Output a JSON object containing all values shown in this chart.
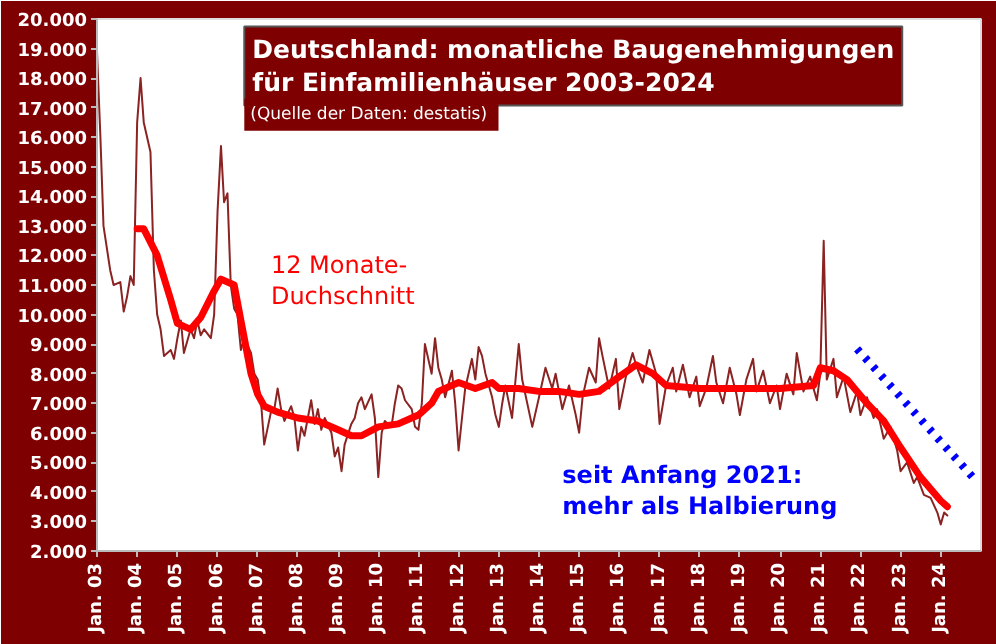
{
  "chart_data": {
    "type": "line",
    "title": "Deutschland: monatliche Baugenehmigungen\nfür Einfamilienhäuser 2003-2024",
    "subtitle": "(Quelle der Daten:  destatis)",
    "annotations": [
      "12 Monate-\nDuchschnitt",
      "seit Anfang 2021:\nmehr als Halbierung"
    ],
    "xlim": [
      "2003-01",
      "2025-01"
    ],
    "ylim": [
      2000,
      20000
    ],
    "xticks": [
      {
        "value": "2003-01",
        "label": "Jan. 03"
      },
      {
        "value": "2004-01",
        "label": "Jan. 04"
      },
      {
        "value": "2005-01",
        "label": "Jan. 05"
      },
      {
        "value": "2006-01",
        "label": "Jan. 06"
      },
      {
        "value": "2007-01",
        "label": "Jan. 07"
      },
      {
        "value": "2008-01",
        "label": "Jan. 08"
      },
      {
        "value": "2009-01",
        "label": "Jan. 09"
      },
      {
        "value": "2010-01",
        "label": "Jan. 10"
      },
      {
        "value": "2011-01",
        "label": "Jan. 11"
      },
      {
        "value": "2012-01",
        "label": "Jan. 12"
      },
      {
        "value": "2013-01",
        "label": "Jan. 13"
      },
      {
        "value": "2014-01",
        "label": "Jan. 14"
      },
      {
        "value": "2015-01",
        "label": "Jan. 15"
      },
      {
        "value": "2016-01",
        "label": "Jan. 16"
      },
      {
        "value": "2017-01",
        "label": "Jan. 17"
      },
      {
        "value": "2018-01",
        "label": "Jan. 18"
      },
      {
        "value": "2019-01",
        "label": "Jan. 19"
      },
      {
        "value": "2020-01",
        "label": "Jan. 20"
      },
      {
        "value": "2021-01",
        "label": "Jan. 21"
      },
      {
        "value": "2022-01",
        "label": "Jan. 22"
      },
      {
        "value": "2023-01",
        "label": "Jan. 23"
      },
      {
        "value": "2024-01",
        "label": "Jan. 24"
      }
    ],
    "yticks": [
      {
        "value": 2000,
        "label": "2.000"
      },
      {
        "value": 3000,
        "label": "3.000"
      },
      {
        "value": 4000,
        "label": "4.000"
      },
      {
        "value": 5000,
        "label": "5.000"
      },
      {
        "value": 6000,
        "label": "6.000"
      },
      {
        "value": 7000,
        "label": "7.000"
      },
      {
        "value": 8000,
        "label": "8.000"
      },
      {
        "value": 9000,
        "label": "9.000"
      },
      {
        "value": 10000,
        "label": "10.000"
      },
      {
        "value": 11000,
        "label": "11.000"
      },
      {
        "value": 12000,
        "label": "12.000"
      },
      {
        "value": 13000,
        "label": "13.000"
      },
      {
        "value": 14000,
        "label": "14.000"
      },
      {
        "value": 15000,
        "label": "15.000"
      },
      {
        "value": 16000,
        "label": "16.000"
      },
      {
        "value": 17000,
        "label": "17.000"
      },
      {
        "value": 18000,
        "label": "18.000"
      },
      {
        "value": 19000,
        "label": "19.000"
      },
      {
        "value": 20000,
        "label": "20.000"
      }
    ],
    "grid": false,
    "marker": "none",
    "series": [
      {
        "color": "#8b2323",
        "line_style": "solid",
        "x": [
          "2003-01",
          "2003-02",
          "2003-03",
          "2003-05",
          "2003-06",
          "2003-08",
          "2003-09",
          "2003-10",
          "2003-11",
          "2003-12",
          "2004-01",
          "2004-02",
          "2004-03",
          "2004-05",
          "2004-06",
          "2004-07",
          "2004-08",
          "2004-09",
          "2004-11",
          "2004-12",
          "2005-01",
          "2005-02",
          "2005-03",
          "2005-05",
          "2005-06",
          "2005-07",
          "2005-08",
          "2005-09",
          "2005-11",
          "2005-12",
          "2006-01",
          "2006-02",
          "2006-03",
          "2006-04",
          "2006-05",
          "2006-06",
          "2006-07",
          "2006-08",
          "2006-09",
          "2006-11",
          "2006-12",
          "2007-01",
          "2007-02",
          "2007-03",
          "2007-05",
          "2007-06",
          "2007-07",
          "2007-08",
          "2007-09",
          "2007-11",
          "2007-12",
          "2008-01",
          "2008-02",
          "2008-03",
          "2008-05",
          "2008-06",
          "2008-07",
          "2008-08",
          "2008-09",
          "2008-11",
          "2008-12",
          "2009-01",
          "2009-02",
          "2009-03",
          "2009-05",
          "2009-06",
          "2009-07",
          "2009-08",
          "2009-09",
          "2009-11",
          "2009-12",
          "2010-01",
          "2010-02",
          "2010-03",
          "2010-05",
          "2010-06",
          "2010-07",
          "2010-08",
          "2010-09",
          "2010-11",
          "2010-12",
          "2011-01",
          "2011-02",
          "2011-03",
          "2011-05",
          "2011-06",
          "2011-07",
          "2011-08",
          "2011-09",
          "2011-11",
          "2011-12",
          "2012-01",
          "2012-02",
          "2012-03",
          "2012-05",
          "2012-06",
          "2012-07",
          "2012-08",
          "2012-09",
          "2012-11",
          "2012-12",
          "2013-01",
          "2013-02",
          "2013-03",
          "2013-05",
          "2013-07",
          "2013-08",
          "2013-11",
          "2014-01",
          "2014-03",
          "2014-05",
          "2014-06",
          "2014-08",
          "2014-10",
          "2014-12",
          "2015-01",
          "2015-02",
          "2015-04",
          "2015-06",
          "2015-07",
          "2015-08",
          "2015-10",
          "2015-12",
          "2016-01",
          "2016-03",
          "2016-05",
          "2016-06",
          "2016-08",
          "2016-10",
          "2016-12",
          "2017-01",
          "2017-03",
          "2017-05",
          "2017-06",
          "2017-08",
          "2017-10",
          "2017-12",
          "2018-01",
          "2018-03",
          "2018-05",
          "2018-06",
          "2018-08",
          "2018-10",
          "2018-12",
          "2019-01",
          "2019-03",
          "2019-05",
          "2019-06",
          "2019-08",
          "2019-10",
          "2019-12",
          "2020-01",
          "2020-03",
          "2020-05",
          "2020-06",
          "2020-08",
          "2020-10",
          "2020-12",
          "2021-01",
          "2021-02",
          "2021-03",
          "2021-05",
          "2021-06",
          "2021-08",
          "2021-10",
          "2021-12",
          "2022-01",
          "2022-03",
          "2022-05",
          "2022-06",
          "2022-08",
          "2022-10",
          "2022-12",
          "2023-01",
          "2023-03",
          "2023-05",
          "2023-06",
          "2023-08",
          "2023-10",
          "2023-12",
          "2024-01",
          "2024-02",
          "2024-03"
        ],
        "values": [
          18900,
          16000,
          13000,
          11500,
          11000,
          11100,
          10100,
          10600,
          11300,
          11000,
          16500,
          18000,
          16500,
          15500,
          11500,
          10000,
          9500,
          8600,
          8800,
          8500,
          9200,
          9800,
          8700,
          9500,
          9200,
          9800,
          9300,
          9500,
          9200,
          10000,
          13500,
          15700,
          13800,
          14100,
          11000,
          10200,
          10000,
          8800,
          9200,
          8700,
          8000,
          7800,
          7000,
          5600,
          6700,
          6800,
          7500,
          6800,
          6400,
          6900,
          6500,
          5400,
          6200,
          5900,
          7100,
          6300,
          6800,
          6100,
          6500,
          6000,
          5200,
          5500,
          4700,
          5600,
          6300,
          6500,
          7000,
          7200,
          6800,
          7300,
          6500,
          4500,
          6000,
          6400,
          6200,
          7000,
          7600,
          7500,
          7100,
          6800,
          6200,
          6100,
          7000,
          9000,
          8000,
          9200,
          8200,
          7800,
          7200,
          8100,
          7000,
          5400,
          6500,
          7500,
          8500,
          7800,
          8900,
          8600,
          8000,
          7200,
          6600,
          6200,
          7000,
          7600,
          6500,
          9000,
          7800,
          6200,
          7200,
          8200,
          7500,
          8000,
          6800,
          7600,
          6600,
          6000,
          7200,
          8200,
          7700,
          9200,
          8600,
          7500,
          8500,
          6800,
          7900,
          8700,
          8300,
          7700,
          8800,
          8000,
          6300,
          7600,
          8200,
          7400,
          8300,
          7200,
          7900,
          6900,
          7500,
          8600,
          7700,
          7000,
          8200,
          7300,
          6600,
          7800,
          8500,
          7400,
          8100,
          7000,
          7600,
          6800,
          8000,
          7300,
          8700,
          7400,
          7900,
          7100,
          8000,
          12500,
          7800,
          8500,
          7200,
          7900,
          6700,
          7400,
          6600,
          7200,
          6500,
          6800,
          5800,
          6200,
          5400,
          4700,
          5000,
          4300,
          4500,
          3900,
          3800,
          3300,
          2900,
          3300,
          3200
        ]
      },
      {
        "color": "#ff0000",
        "line_style": "solid",
        "x": [
          "2004-01",
          "2004-03",
          "2004-07",
          "2004-11",
          "2005-01",
          "2005-05",
          "2005-08",
          "2005-12",
          "2006-02",
          "2006-06",
          "2006-08",
          "2006-11",
          "2007-01",
          "2007-03",
          "2007-07",
          "2008-01",
          "2008-07",
          "2009-01",
          "2009-05",
          "2009-08",
          "2010-01",
          "2010-07",
          "2011-01",
          "2011-05",
          "2011-07",
          "2012-01",
          "2012-06",
          "2012-11",
          "2013-01",
          "2013-07",
          "2014-01",
          "2014-07",
          "2015-01",
          "2015-07",
          "2016-01",
          "2016-06",
          "2016-11",
          "2017-03",
          "2018-01",
          "2019-01",
          "2020-01",
          "2020-11",
          "2021-01",
          "2021-05",
          "2021-09",
          "2021-12",
          "2022-03",
          "2022-08",
          "2023-01",
          "2023-07",
          "2024-01",
          "2024-03"
        ],
        "values": [
          12900,
          12900,
          12000,
          10500,
          9700,
          9500,
          9900,
          10800,
          11200,
          11000,
          9800,
          8000,
          7300,
          6900,
          6700,
          6500,
          6400,
          6100,
          5900,
          5900,
          6200,
          6300,
          6600,
          7000,
          7400,
          7700,
          7500,
          7700,
          7500,
          7500,
          7400,
          7400,
          7300,
          7400,
          7900,
          8300,
          8000,
          7600,
          7500,
          7500,
          7500,
          7600,
          8200,
          8100,
          7800,
          7400,
          7000,
          6400,
          5500,
          4500,
          3700,
          3500
        ]
      },
      {
        "color": "#0000ff",
        "line_style": "dotted",
        "x": [
          "2021-12",
          "2024-11"
        ],
        "values": [
          8840,
          4440
        ]
      }
    ]
  }
}
